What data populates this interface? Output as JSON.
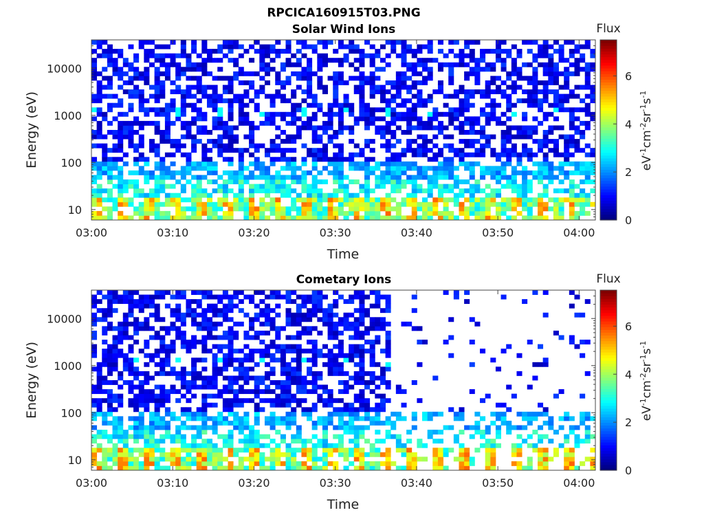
{
  "figure": {
    "title": "RPCICA160915T03.PNG"
  },
  "chart_data": [
    {
      "type": "heatmap",
      "title": "Solar Wind Ions",
      "xlabel": "Time",
      "ylabel": "Energy (eV)",
      "x_ticks": [
        "03:00",
        "03:10",
        "03:20",
        "03:30",
        "03:40",
        "03:50",
        "04:00"
      ],
      "x_range": [
        "03:00",
        "04:02"
      ],
      "y_scale": "log",
      "y_ticks": [
        10,
        100,
        1000,
        10000
      ],
      "ylim": [
        6,
        40000
      ],
      "colorbar": {
        "title": "Flux",
        "label": "eV-1cm-2sr-1s-1",
        "ticks": [
          0,
          2,
          4,
          6
        ],
        "range": [
          0,
          7.5
        ],
        "colormap": "jet"
      },
      "pattern": {
        "mode": "solar",
        "seed": 11,
        "vgap": false
      }
    },
    {
      "type": "heatmap",
      "title": "Cometary Ions",
      "xlabel": "Time",
      "ylabel": "Energy (eV)",
      "x_ticks": [
        "03:00",
        "03:10",
        "03:20",
        "03:30",
        "03:40",
        "03:50",
        "04:00"
      ],
      "x_range": [
        "03:00",
        "04:02"
      ],
      "y_scale": "log",
      "y_ticks": [
        10,
        100,
        1000,
        10000
      ],
      "ylim": [
        6,
        40000
      ],
      "colorbar": {
        "title": "Flux",
        "label": "eV-1cm-2sr-1s-1",
        "ticks": [
          0,
          2,
          4,
          6
        ],
        "range": [
          0,
          7.5
        ],
        "colormap": "jet"
      },
      "pattern": {
        "mode": "comet",
        "seed": 29,
        "gap_after": "03:37"
      }
    }
  ]
}
